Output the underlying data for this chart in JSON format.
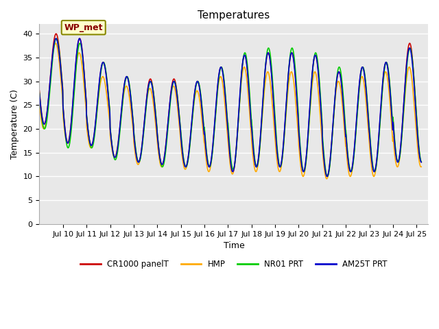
{
  "title": "Temperatures",
  "xlabel": "Time",
  "ylabel": "Temperature (C)",
  "ylim": [
    0,
    42
  ],
  "yticks": [
    0,
    5,
    10,
    15,
    20,
    25,
    30,
    35,
    40
  ],
  "outer_bg": "#ffffff",
  "plot_bg_color": "#e8e8e8",
  "grid_color": "#ffffff",
  "series": [
    {
      "label": "CR1000 panelT",
      "color": "#cc0000",
      "lw": 1.2
    },
    {
      "label": "HMP",
      "color": "#ffaa00",
      "lw": 1.2
    },
    {
      "label": "NR01 PRT",
      "color": "#00cc00",
      "lw": 1.2
    },
    {
      "label": "AM25T PRT",
      "color": "#0000cc",
      "lw": 1.2
    }
  ],
  "annotation_text": "WP_met",
  "annotation_fontsize": 9,
  "annotation_bbox_facecolor": "#ffffcc",
  "annotation_bbox_edgecolor": "#888800",
  "x_tick_labels": [
    "Jul 10",
    "Jul 11",
    "Jul 12",
    "Jul 13",
    "Jul 14",
    "Jul 15",
    "Jul 16",
    "Jul 17",
    "Jul 18",
    "Jul 19",
    "Jul 20",
    "Jul 21",
    "Jul 22",
    "Jul 23",
    "Jul 24",
    "Jul 25"
  ],
  "daily_maxs_cr": [
    40,
    39,
    34,
    31,
    30.5,
    30.5,
    30,
    33,
    35.5,
    36,
    36,
    35.5,
    32,
    33,
    34,
    38
  ],
  "daily_mins_cr": [
    21,
    17,
    16.5,
    14,
    13,
    12.5,
    12,
    12,
    11,
    12,
    12,
    11,
    10,
    11,
    11,
    13
  ],
  "daily_maxs_hmp": [
    38,
    36,
    31,
    29,
    28.5,
    29,
    28,
    31,
    33,
    32,
    32,
    32,
    30,
    31,
    32,
    33
  ],
  "daily_mins_hmp": [
    20,
    17,
    16,
    14,
    12.5,
    12,
    11.5,
    11,
    10.5,
    11,
    11,
    10,
    9.5,
    10,
    10,
    12
  ],
  "daily_maxs_nr": [
    39,
    38,
    34,
    31,
    30,
    30,
    30,
    33,
    36,
    37,
    37,
    36,
    33,
    33,
    34,
    37
  ],
  "daily_mins_nr": [
    20,
    16,
    16,
    13.5,
    13,
    12,
    12,
    12,
    11.5,
    12,
    12,
    11,
    10,
    11,
    11,
    13
  ],
  "daily_maxs_am": [
    39,
    39,
    34,
    31,
    30,
    30,
    30,
    33,
    35.5,
    36,
    36,
    35.5,
    32,
    33,
    34,
    37
  ],
  "daily_mins_am": [
    21,
    17,
    16.5,
    14,
    13,
    12.5,
    12,
    12,
    11,
    12,
    12,
    11,
    10,
    11,
    11,
    13
  ]
}
